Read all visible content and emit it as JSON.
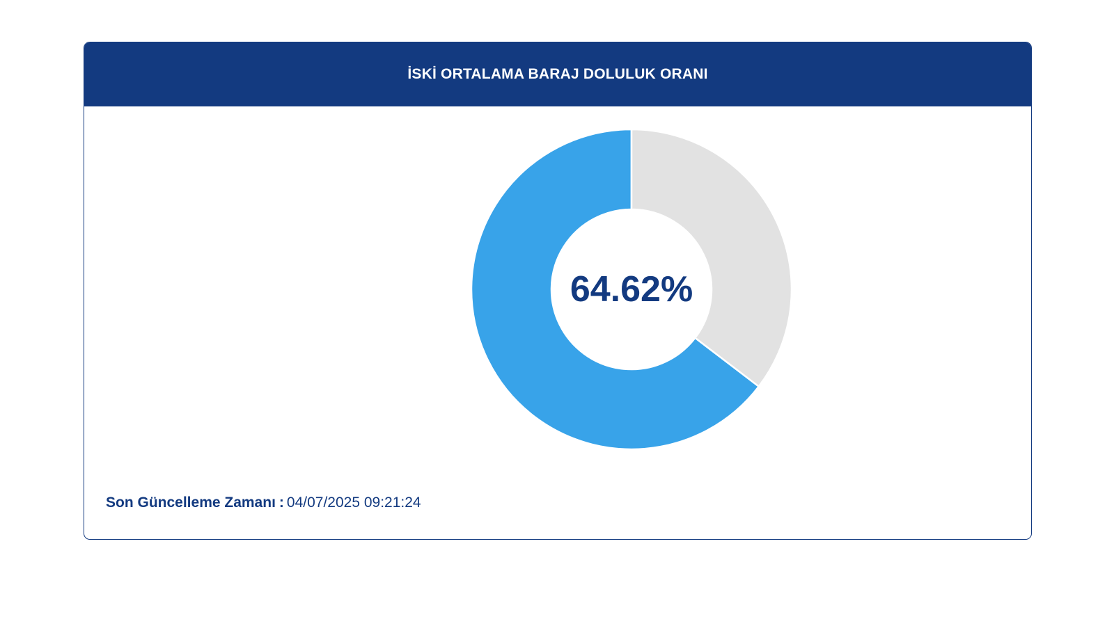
{
  "card": {
    "title": "İSKİ ORTALAMA BARAJ DOLULUK ORANI"
  },
  "chart_data": {
    "type": "pie",
    "variant": "donut",
    "center_label": "64.62%",
    "slices": [
      {
        "value": 64.62,
        "color": "#38a3e9"
      },
      {
        "value": 35.38,
        "color": "#e2e2e2"
      }
    ]
  },
  "footer": {
    "label": "Son Güncelleme Zamanı",
    "separator": ":",
    "timestamp": "04/07/2025 09:21:24"
  },
  "colors": {
    "header_bg": "#133a80",
    "text_primary": "#133a80"
  }
}
